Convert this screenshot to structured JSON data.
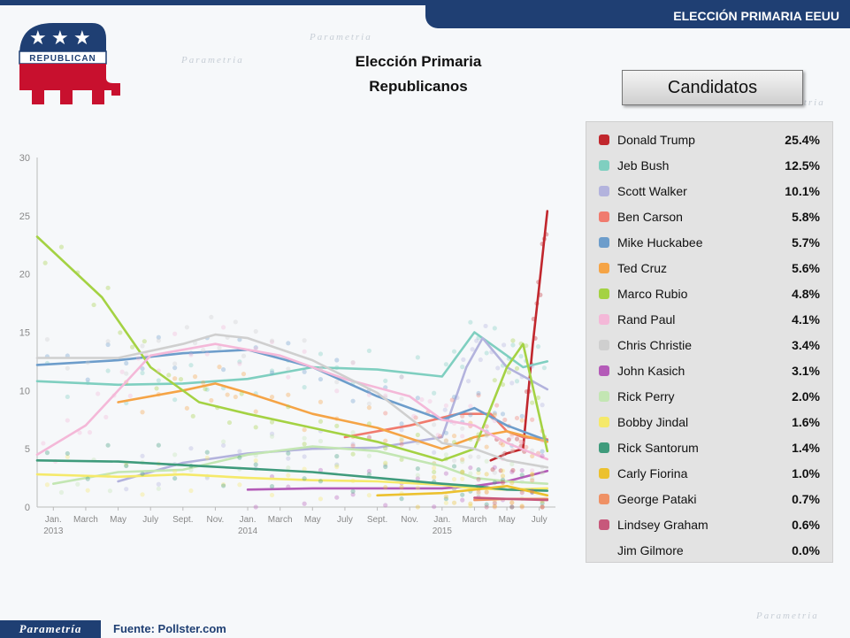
{
  "header": {
    "banner": "ELECCIÓN PRIMARIA EEUU"
  },
  "logo": {
    "word": "REPUBLICAN",
    "brand_color": "#c8102e",
    "star_color": "#1f3f73"
  },
  "title": {
    "line1": "Elección Primaria",
    "line2": "Republicanos"
  },
  "legend": {
    "header": "Candidatos",
    "items": [
      {
        "name": "Donald Trump",
        "value": "25.4%",
        "color": "#c1272d"
      },
      {
        "name": "Jeb Bush",
        "value": "12.5%",
        "color": "#7fcfc0"
      },
      {
        "name": "Scott Walker",
        "value": "10.1%",
        "color": "#b3b3dd"
      },
      {
        "name": "Ben Carson",
        "value": "5.8%",
        "color": "#f07b6e"
      },
      {
        "name": "Mike Huckabee",
        "value": "5.7%",
        "color": "#6d9dcb"
      },
      {
        "name": "Ted Cruz",
        "value": "5.6%",
        "color": "#f5a446"
      },
      {
        "name": "Marco Rubio",
        "value": "4.8%",
        "color": "#a4d243"
      },
      {
        "name": "Rand Paul",
        "value": "4.1%",
        "color": "#f4b8d8"
      },
      {
        "name": "Chris Christie",
        "value": "3.4%",
        "color": "#cfcfcf"
      },
      {
        "name": "John Kasich",
        "value": "3.1%",
        "color": "#b45bb8"
      },
      {
        "name": "Rick Perry",
        "value": "2.0%",
        "color": "#c3e6b3"
      },
      {
        "name": "Bobby Jindal",
        "value": "1.6%",
        "color": "#f5e96a"
      },
      {
        "name": "Rick Santorum",
        "value": "1.4%",
        "color": "#3f9b7c"
      },
      {
        "name": "Carly Fiorina",
        "value": "1.0%",
        "color": "#ecc12f"
      },
      {
        "name": "George Pataki",
        "value": "0.7%",
        "color": "#ef9165"
      },
      {
        "name": "Lindsey Graham",
        "value": "0.6%",
        "color": "#c7587b"
      },
      {
        "name": "Jim Gilmore",
        "value": "0.0%",
        "color": "#e3e3e3"
      }
    ]
  },
  "chart_data": {
    "type": "line",
    "x_unit": "months since Jan 2013",
    "xlim": [
      -1,
      31
    ],
    "ylim": [
      0,
      30
    ],
    "y_ticks": [
      0,
      5,
      10,
      15,
      20,
      25,
      30
    ],
    "x_ticks": [
      {
        "x": 0,
        "label": "Jan.",
        "year": "2013"
      },
      {
        "x": 2,
        "label": "March",
        "year": ""
      },
      {
        "x": 4,
        "label": "May",
        "year": ""
      },
      {
        "x": 6,
        "label": "July",
        "year": ""
      },
      {
        "x": 8,
        "label": "Sept.",
        "year": ""
      },
      {
        "x": 10,
        "label": "Nov.",
        "year": ""
      },
      {
        "x": 12,
        "label": "Jan.",
        "year": "2014"
      },
      {
        "x": 14,
        "label": "March",
        "year": ""
      },
      {
        "x": 16,
        "label": "May",
        "year": ""
      },
      {
        "x": 18,
        "label": "July",
        "year": ""
      },
      {
        "x": 20,
        "label": "Sept.",
        "year": ""
      },
      {
        "x": 22,
        "label": "Nov.",
        "year": ""
      },
      {
        "x": 24,
        "label": "Jan.",
        "year": "2015"
      },
      {
        "x": 26,
        "label": "March",
        "year": ""
      },
      {
        "x": 28,
        "label": "May",
        "year": ""
      },
      {
        "x": 30,
        "label": "July",
        "year": ""
      }
    ],
    "grid": false,
    "series": [
      {
        "name": "Donald Trump",
        "color": "#c1272d",
        "points": [
          [
            27,
            4
          ],
          [
            28,
            4.6
          ],
          [
            29,
            5
          ],
          [
            29.6,
            14
          ],
          [
            30,
            19
          ],
          [
            30.5,
            25.4
          ]
        ]
      },
      {
        "name": "Jeb Bush",
        "color": "#7fcfc0",
        "points": [
          [
            -1,
            10.8
          ],
          [
            4,
            10.5
          ],
          [
            8,
            10.6
          ],
          [
            12,
            11
          ],
          [
            16,
            12
          ],
          [
            20,
            11.8
          ],
          [
            24,
            11.2
          ],
          [
            26,
            15
          ],
          [
            28,
            13
          ],
          [
            29,
            12
          ],
          [
            30.5,
            12.5
          ]
        ]
      },
      {
        "name": "Scott Walker",
        "color": "#b3b3dd",
        "points": [
          [
            4,
            2.2
          ],
          [
            8,
            3.8
          ],
          [
            12,
            4.6
          ],
          [
            16,
            5
          ],
          [
            20,
            5.1
          ],
          [
            24,
            6
          ],
          [
            25.5,
            12
          ],
          [
            26.5,
            14.5
          ],
          [
            28,
            12
          ],
          [
            30.5,
            10.1
          ]
        ]
      },
      {
        "name": "Ben Carson",
        "color": "#f07b6e",
        "points": [
          [
            18,
            6
          ],
          [
            22,
            7
          ],
          [
            25,
            8
          ],
          [
            27,
            8
          ],
          [
            28,
            6.5
          ],
          [
            29,
            6
          ],
          [
            30.5,
            5.8
          ]
        ]
      },
      {
        "name": "Mike Huckabee",
        "color": "#6d9dcb",
        "points": [
          [
            -1,
            12.2
          ],
          [
            4,
            12.6
          ],
          [
            8,
            13.2
          ],
          [
            12,
            13.5
          ],
          [
            16,
            12
          ],
          [
            20,
            9.5
          ],
          [
            24,
            7.5
          ],
          [
            26,
            8.5
          ],
          [
            28,
            7
          ],
          [
            30.5,
            5.7
          ]
        ]
      },
      {
        "name": "Ted Cruz",
        "color": "#f5a446",
        "points": [
          [
            4,
            9
          ],
          [
            8,
            10
          ],
          [
            10,
            10.6
          ],
          [
            12,
            9.8
          ],
          [
            16,
            8
          ],
          [
            20,
            6.8
          ],
          [
            24,
            5
          ],
          [
            26,
            6
          ],
          [
            28,
            6.5
          ],
          [
            30.5,
            5.6
          ]
        ]
      },
      {
        "name": "Marco Rubio",
        "color": "#a4d243",
        "points": [
          [
            -1,
            23.2
          ],
          [
            3,
            18
          ],
          [
            6,
            12
          ],
          [
            9,
            9
          ],
          [
            12,
            8
          ],
          [
            16,
            6.8
          ],
          [
            20,
            5.6
          ],
          [
            24,
            4
          ],
          [
            26,
            5
          ],
          [
            28,
            12
          ],
          [
            29,
            14
          ],
          [
            30.5,
            4.8
          ]
        ]
      },
      {
        "name": "Rand Paul",
        "color": "#f4b8d8",
        "points": [
          [
            -1,
            4.5
          ],
          [
            2,
            7
          ],
          [
            4,
            10
          ],
          [
            6,
            13
          ],
          [
            10,
            14
          ],
          [
            14,
            13
          ],
          [
            18,
            11
          ],
          [
            22,
            9.5
          ],
          [
            24,
            7.5
          ],
          [
            26,
            7
          ],
          [
            28,
            5.5
          ],
          [
            30.5,
            4.1
          ]
        ]
      },
      {
        "name": "Chris Christie",
        "color": "#cfcfcf",
        "points": [
          [
            -1,
            12.8
          ],
          [
            4,
            12.8
          ],
          [
            8,
            14
          ],
          [
            10,
            14.8
          ],
          [
            12,
            14.5
          ],
          [
            16,
            12.6
          ],
          [
            20,
            9.8
          ],
          [
            24,
            5.5
          ],
          [
            26,
            5
          ],
          [
            28,
            4
          ],
          [
            30.5,
            3.4
          ]
        ]
      },
      {
        "name": "John Kasich",
        "color": "#b45bb8",
        "points": [
          [
            12,
            1.5
          ],
          [
            16,
            1.6
          ],
          [
            20,
            1.6
          ],
          [
            24,
            1.6
          ],
          [
            26,
            1.8
          ],
          [
            28,
            2.2
          ],
          [
            30.5,
            3.1
          ]
        ]
      },
      {
        "name": "Rick Perry",
        "color": "#c3e6b3",
        "points": [
          [
            0,
            2
          ],
          [
            4,
            3
          ],
          [
            8,
            3.2
          ],
          [
            12,
            4.5
          ],
          [
            16,
            5.2
          ],
          [
            20,
            4.8
          ],
          [
            24,
            3.5
          ],
          [
            26,
            2.5
          ],
          [
            28,
            2.2
          ],
          [
            30.5,
            2.0
          ]
        ]
      },
      {
        "name": "Bobby Jindal",
        "color": "#f5e96a",
        "points": [
          [
            -1,
            2.8
          ],
          [
            4,
            2.6
          ],
          [
            8,
            2.8
          ],
          [
            12,
            2.5
          ],
          [
            16,
            2.3
          ],
          [
            20,
            2.2
          ],
          [
            24,
            1.9
          ],
          [
            26,
            1.6
          ],
          [
            28,
            1.5
          ],
          [
            30.5,
            1.6
          ]
        ]
      },
      {
        "name": "Rick Santorum",
        "color": "#3f9b7c",
        "points": [
          [
            -1,
            4
          ],
          [
            4,
            3.9
          ],
          [
            8,
            3.6
          ],
          [
            12,
            3.3
          ],
          [
            16,
            3
          ],
          [
            20,
            2.5
          ],
          [
            24,
            2
          ],
          [
            26,
            1.8
          ],
          [
            28,
            1.5
          ],
          [
            30.5,
            1.4
          ]
        ]
      },
      {
        "name": "Carly Fiorina",
        "color": "#ecc12f",
        "points": [
          [
            20,
            1
          ],
          [
            24,
            1.2
          ],
          [
            26,
            1.5
          ],
          [
            28,
            1.8
          ],
          [
            30.5,
            1.0
          ]
        ]
      },
      {
        "name": "George Pataki",
        "color": "#ef9165",
        "points": [
          [
            26,
            0.6
          ],
          [
            28,
            0.7
          ],
          [
            30.5,
            0.7
          ]
        ]
      },
      {
        "name": "Lindsey Graham",
        "color": "#c7587b",
        "points": [
          [
            26,
            0.8
          ],
          [
            28,
            0.7
          ],
          [
            30.5,
            0.6
          ]
        ]
      }
    ]
  },
  "footer": {
    "logo": "Parametría",
    "source": "Fuente: Pollster.com"
  }
}
